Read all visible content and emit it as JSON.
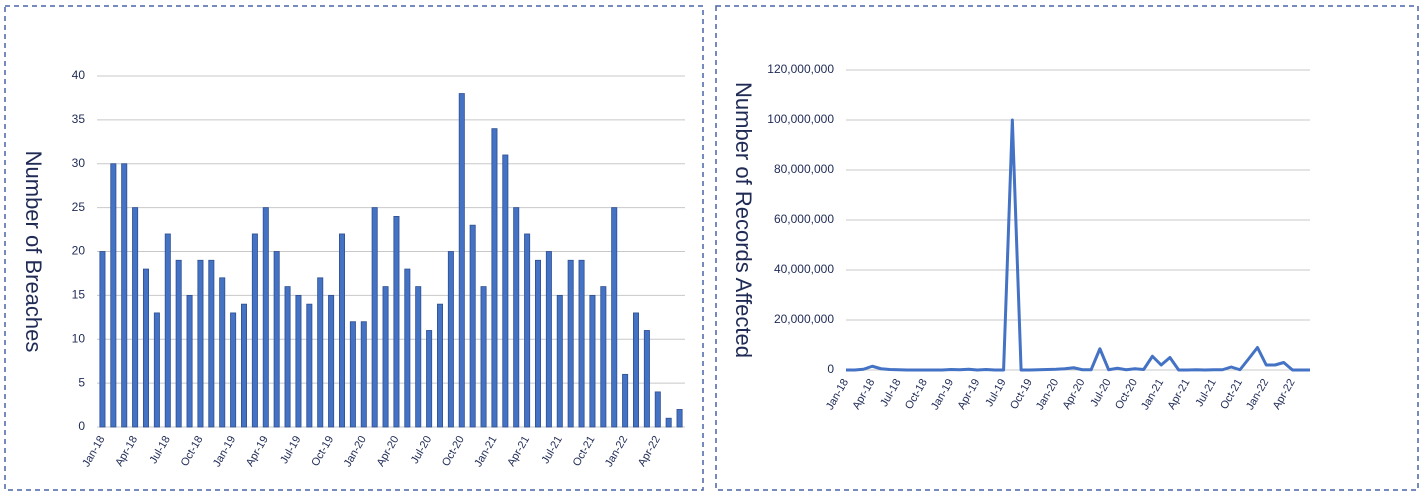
{
  "chart_data": [
    {
      "type": "bar",
      "y_axis_label": "Number of Breaches",
      "categories": [
        "Jan-18",
        null,
        null,
        "Apr-18",
        null,
        null,
        "Jul-18",
        null,
        null,
        "Oct-18",
        null,
        null,
        "Jan-19",
        null,
        null,
        "Apr-19",
        null,
        null,
        "Jul-19",
        null,
        null,
        "Oct-19",
        null,
        null,
        "Jan-20",
        null,
        null,
        "Apr-20",
        null,
        null,
        "Jul-20",
        null,
        null,
        "Oct-20",
        null,
        null,
        "Jan-21",
        null,
        null,
        "Apr-21",
        null,
        null,
        "Jul-21",
        null,
        null,
        "Oct-21",
        null,
        null,
        "Jan-22",
        null,
        null,
        "Apr-22",
        null,
        null
      ],
      "values": [
        20,
        30,
        30,
        25,
        18,
        13,
        22,
        19,
        15,
        19,
        19,
        17,
        13,
        14,
        22,
        25,
        20,
        16,
        15,
        14,
        17,
        15,
        22,
        12,
        12,
        25,
        16,
        24,
        18,
        16,
        11,
        14,
        20,
        38,
        23,
        16,
        34,
        31,
        25,
        22,
        19,
        20,
        15,
        19,
        19,
        15,
        16,
        25,
        6,
        13,
        11,
        4,
        1,
        2
      ],
      "color": "#4472c4",
      "ylim": [
        0,
        40
      ],
      "yticks": [
        0,
        5,
        10,
        15,
        20,
        25,
        30,
        35,
        40
      ],
      "grid": true
    },
    {
      "type": "line",
      "y_axis_label": "Number of Records Affected",
      "categories": [
        "Jan-18",
        null,
        null,
        "Apr-18",
        null,
        null,
        "Jul-18",
        null,
        null,
        "Oct-18",
        null,
        null,
        "Jan-19",
        null,
        null,
        "Apr-19",
        null,
        null,
        "Jul-19",
        null,
        null,
        "Oct-19",
        null,
        null,
        "Jan-20",
        null,
        null,
        "Apr-20",
        null,
        null,
        "Jul-20",
        null,
        null,
        "Oct-20",
        null,
        null,
        "Jan-21",
        null,
        null,
        "Apr-21",
        null,
        null,
        "Jul-21",
        null,
        null,
        "Oct-21",
        null,
        null,
        "Jan-22",
        null,
        null,
        "Apr-22",
        null,
        null
      ],
      "values": [
        0,
        0,
        300000,
        1500000,
        500000,
        200000,
        100000,
        0,
        0,
        0,
        0,
        0,
        200000,
        100000,
        300000,
        0,
        200000,
        0,
        0,
        100000000,
        0,
        0,
        100000,
        200000,
        300000,
        500000,
        900000,
        100000,
        100000,
        8500000,
        100000,
        700000,
        100000,
        500000,
        200000,
        5500000,
        2000000,
        5000000,
        0,
        0,
        100000,
        0,
        100000,
        100000,
        1200000,
        100000,
        4500000,
        9000000,
        2000000,
        2000000,
        3000000,
        0,
        0,
        0
      ],
      "color": "#4472c4",
      "ylim": [
        0,
        120000000
      ],
      "yticks": [
        0,
        {
          "value": 20000000,
          "label": "20,000,000"
        },
        {
          "value": 40000000,
          "label": "40,000,000"
        },
        {
          "value": 60000000,
          "label": "60,000,000"
        },
        {
          "value": 80000000,
          "label": "80,000,000"
        },
        {
          "value": 100000000,
          "label": "100,000,000"
        },
        {
          "value": 120000000,
          "label": "120,000,000"
        }
      ],
      "grid": true
    }
  ]
}
